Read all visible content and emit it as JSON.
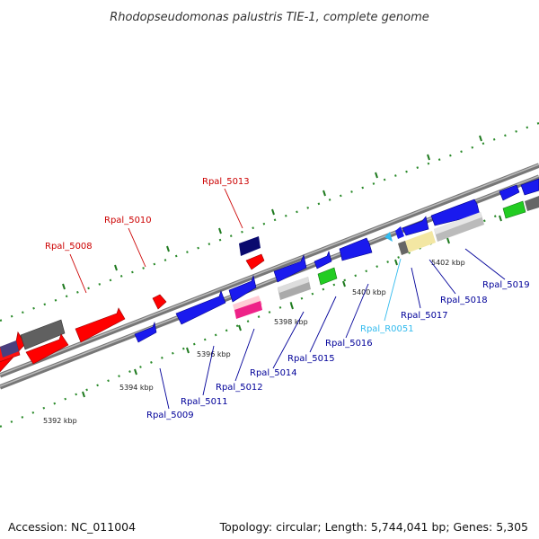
{
  "title": "Rhodopseudomonas palustris TIE-1, complete genome",
  "footer": {
    "accession": "Accession: NC_011004",
    "summary": "Topology: circular; Length: 5,744,041 bp; Genes: 5,305"
  },
  "colors": {
    "upper_label": "#cc0000",
    "lower_label": "#000099",
    "rna_label": "#33bbee",
    "tick": "#228822",
    "backbone": "#888888"
  },
  "scale_labels": [
    "5392 kbp",
    "5394 kbp",
    "5396 kbp",
    "5398 kbp",
    "5400 kbp",
    "5402 kbp"
  ],
  "upper_gene_labels": [
    "Rpal_5008",
    "Rpal_5010",
    "Rpal_5013"
  ],
  "lower_gene_labels": [
    "Rpal_5009",
    "Rpal_5011",
    "Rpal_5012",
    "Rpal_5014",
    "Rpal_5015",
    "Rpal_5016",
    "Rpal_R0051",
    "Rpal_5017",
    "Rpal_5018",
    "Rpal_5019"
  ]
}
